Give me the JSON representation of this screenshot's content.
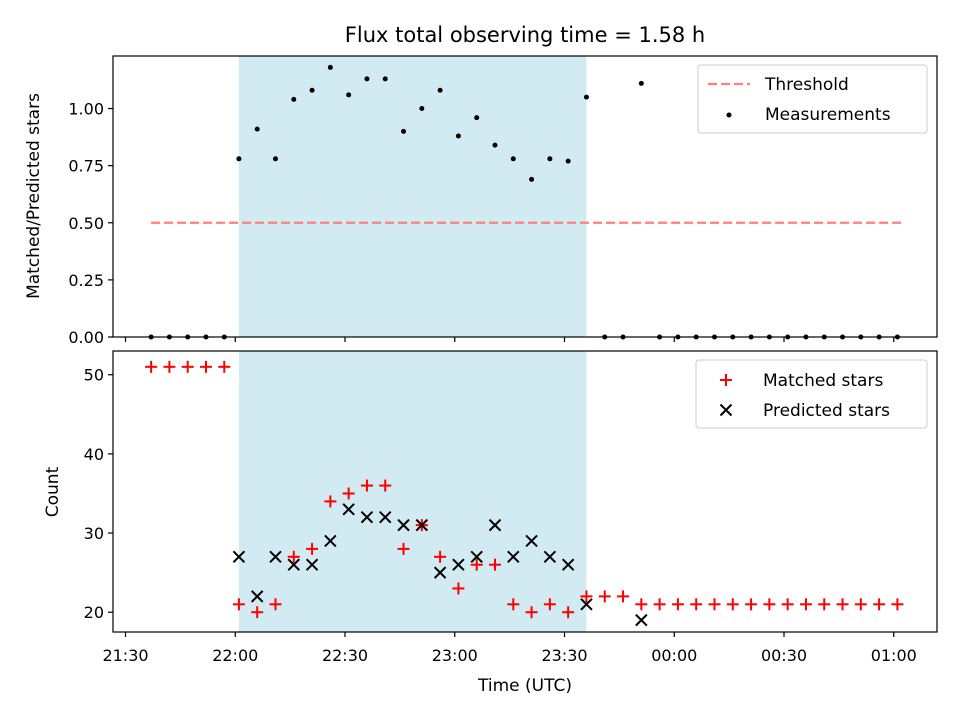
{
  "title": "Flux total observing time = 1.58 h",
  "colors": {
    "shade": "#add8e6",
    "threshold": "#ff7f7f",
    "matched": "#ff0000",
    "predicted": "#000000",
    "measurement": "#000000"
  },
  "chart_data": [
    {
      "type": "scatter",
      "panel": "top",
      "xlabel": "",
      "ylabel": "Matched/Predicted stars",
      "ylim": [
        0,
        1.23
      ],
      "yticks": [
        0.0,
        0.25,
        0.5,
        0.75,
        1.0
      ],
      "ytick_labels": [
        "0.00",
        "0.25",
        "0.50",
        "0.75",
        "1.00"
      ],
      "legend_position": "top-right",
      "shaded_span": [
        "22:01",
        "23:36"
      ],
      "threshold": {
        "name": "Threshold",
        "y": 0.5,
        "x": [
          "21:37",
          "01:02"
        ]
      },
      "series": [
        {
          "name": "Measurements",
          "points": [
            [
              "21:37",
              0
            ],
            [
              "21:42",
              0
            ],
            [
              "21:47",
              0
            ],
            [
              "21:52",
              0
            ],
            [
              "21:57",
              0
            ],
            [
              "22:01",
              0.78
            ],
            [
              "22:06",
              0.91
            ],
            [
              "22:11",
              0.78
            ],
            [
              "22:16",
              1.04
            ],
            [
              "22:21",
              1.08
            ],
            [
              "22:26",
              1.18
            ],
            [
              "22:31",
              1.06
            ],
            [
              "22:36",
              1.13
            ],
            [
              "22:41",
              1.13
            ],
            [
              "22:46",
              0.9
            ],
            [
              "22:51",
              1.0
            ],
            [
              "22:56",
              1.08
            ],
            [
              "23:01",
              0.88
            ],
            [
              "23:06",
              0.96
            ],
            [
              "23:11",
              0.84
            ],
            [
              "23:16",
              0.78
            ],
            [
              "23:21",
              0.69
            ],
            [
              "23:26",
              0.78
            ],
            [
              "23:31",
              0.77
            ],
            [
              "23:36",
              1.05
            ],
            [
              "23:41",
              0
            ],
            [
              "23:46",
              0
            ],
            [
              "23:51",
              1.11
            ],
            [
              "23:56",
              0
            ],
            [
              "00:01",
              0
            ],
            [
              "00:06",
              0
            ],
            [
              "00:11",
              0
            ],
            [
              "00:16",
              0
            ],
            [
              "00:21",
              0
            ],
            [
              "00:26",
              0
            ],
            [
              "00:31",
              0
            ],
            [
              "00:36",
              0
            ],
            [
              "00:41",
              0
            ],
            [
              "00:46",
              0
            ],
            [
              "00:51",
              0
            ],
            [
              "00:56",
              0
            ],
            [
              "01:01",
              0
            ]
          ]
        }
      ]
    },
    {
      "type": "scatter",
      "panel": "bottom",
      "xlabel": "Time (UTC)",
      "ylabel": "Count",
      "ylim": [
        17.5,
        53
      ],
      "yticks": [
        20,
        30,
        40,
        50
      ],
      "xticks": [
        "21:30",
        "22:00",
        "22:30",
        "23:00",
        "23:30",
        "00:00",
        "00:30",
        "01:00"
      ],
      "legend_position": "top-right",
      "shaded_span": [
        "22:01",
        "23:36"
      ],
      "series": [
        {
          "name": "Matched stars",
          "marker": "+",
          "points": [
            [
              "21:37",
              51
            ],
            [
              "21:42",
              51
            ],
            [
              "21:47",
              51
            ],
            [
              "21:52",
              51
            ],
            [
              "21:57",
              51
            ],
            [
              "22:01",
              21
            ],
            [
              "22:06",
              20
            ],
            [
              "22:11",
              21
            ],
            [
              "22:16",
              27
            ],
            [
              "22:21",
              28
            ],
            [
              "22:26",
              34
            ],
            [
              "22:31",
              35
            ],
            [
              "22:36",
              36
            ],
            [
              "22:41",
              36
            ],
            [
              "22:46",
              28
            ],
            [
              "22:51",
              31
            ],
            [
              "22:56",
              27
            ],
            [
              "23:01",
              23
            ],
            [
              "23:06",
              26
            ],
            [
              "23:11",
              26
            ],
            [
              "23:16",
              21
            ],
            [
              "23:21",
              20
            ],
            [
              "23:26",
              21
            ],
            [
              "23:31",
              20
            ],
            [
              "23:36",
              22
            ],
            [
              "23:41",
              22
            ],
            [
              "23:46",
              22
            ],
            [
              "23:51",
              21
            ],
            [
              "23:56",
              21
            ],
            [
              "00:01",
              21
            ],
            [
              "00:06",
              21
            ],
            [
              "00:11",
              21
            ],
            [
              "00:16",
              21
            ],
            [
              "00:21",
              21
            ],
            [
              "00:26",
              21
            ],
            [
              "00:31",
              21
            ],
            [
              "00:36",
              21
            ],
            [
              "00:41",
              21
            ],
            [
              "00:46",
              21
            ],
            [
              "00:51",
              21
            ],
            [
              "00:56",
              21
            ],
            [
              "01:01",
              21
            ]
          ]
        },
        {
          "name": "Predicted stars",
          "marker": "x",
          "points": [
            [
              "22:01",
              27
            ],
            [
              "22:06",
              22
            ],
            [
              "22:11",
              27
            ],
            [
              "22:16",
              26
            ],
            [
              "22:21",
              26
            ],
            [
              "22:26",
              29
            ],
            [
              "22:31",
              33
            ],
            [
              "22:36",
              32
            ],
            [
              "22:41",
              32
            ],
            [
              "22:46",
              31
            ],
            [
              "22:51",
              31
            ],
            [
              "22:56",
              25
            ],
            [
              "23:01",
              26
            ],
            [
              "23:06",
              27
            ],
            [
              "23:11",
              31
            ],
            [
              "23:16",
              27
            ],
            [
              "23:21",
              29
            ],
            [
              "23:26",
              27
            ],
            [
              "23:31",
              26
            ],
            [
              "23:36",
              21
            ],
            [
              "23:51",
              19
            ]
          ]
        }
      ]
    }
  ]
}
